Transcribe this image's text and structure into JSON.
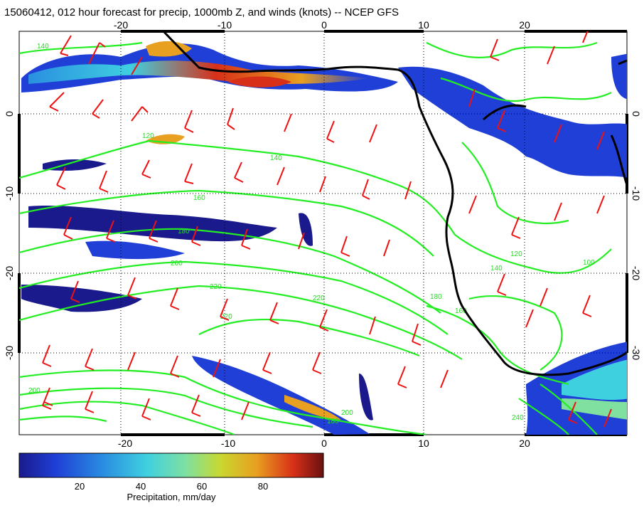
{
  "title": "15060412, 012 hour forecast for precip, 1000mb Z, and winds (knots) -- NCEP GFS",
  "map": {
    "lon_range": [
      -30,
      30
    ],
    "lat_range": [
      -40,
      10
    ],
    "lon_ticks": [
      "-20",
      "-10",
      "0",
      "10",
      "20"
    ],
    "lat_ticks": [
      "0",
      "-10",
      "-20",
      "-30"
    ],
    "lon_tick_values": [
      -20,
      -10,
      0,
      10,
      20
    ],
    "lat_tick_values": [
      0,
      -10,
      -20,
      -30
    ],
    "grid": "dotted"
  },
  "contour_labels": [
    "140",
    "120",
    "140",
    "160",
    "180",
    "200",
    "220",
    "220",
    "220",
    "200",
    "180",
    "160",
    "140",
    "120",
    "100",
    "200",
    "180",
    "240"
  ],
  "colorbar": {
    "label": "Precipitation, mm/day",
    "ticks": [
      "20",
      "40",
      "60",
      "80"
    ],
    "tick_values": [
      20,
      40,
      60,
      80
    ],
    "range": [
      0,
      100
    ],
    "colors": [
      "#1a1a8c",
      "#1f3fd6",
      "#2a8fe0",
      "#3fd0e0",
      "#7fe0a0",
      "#c8d830",
      "#e8a020",
      "#d83018",
      "#6a1010"
    ]
  },
  "colors": {
    "contour": "#22ee22",
    "barb": "#ee1111",
    "coast": "#000000",
    "grid": "#000000"
  }
}
